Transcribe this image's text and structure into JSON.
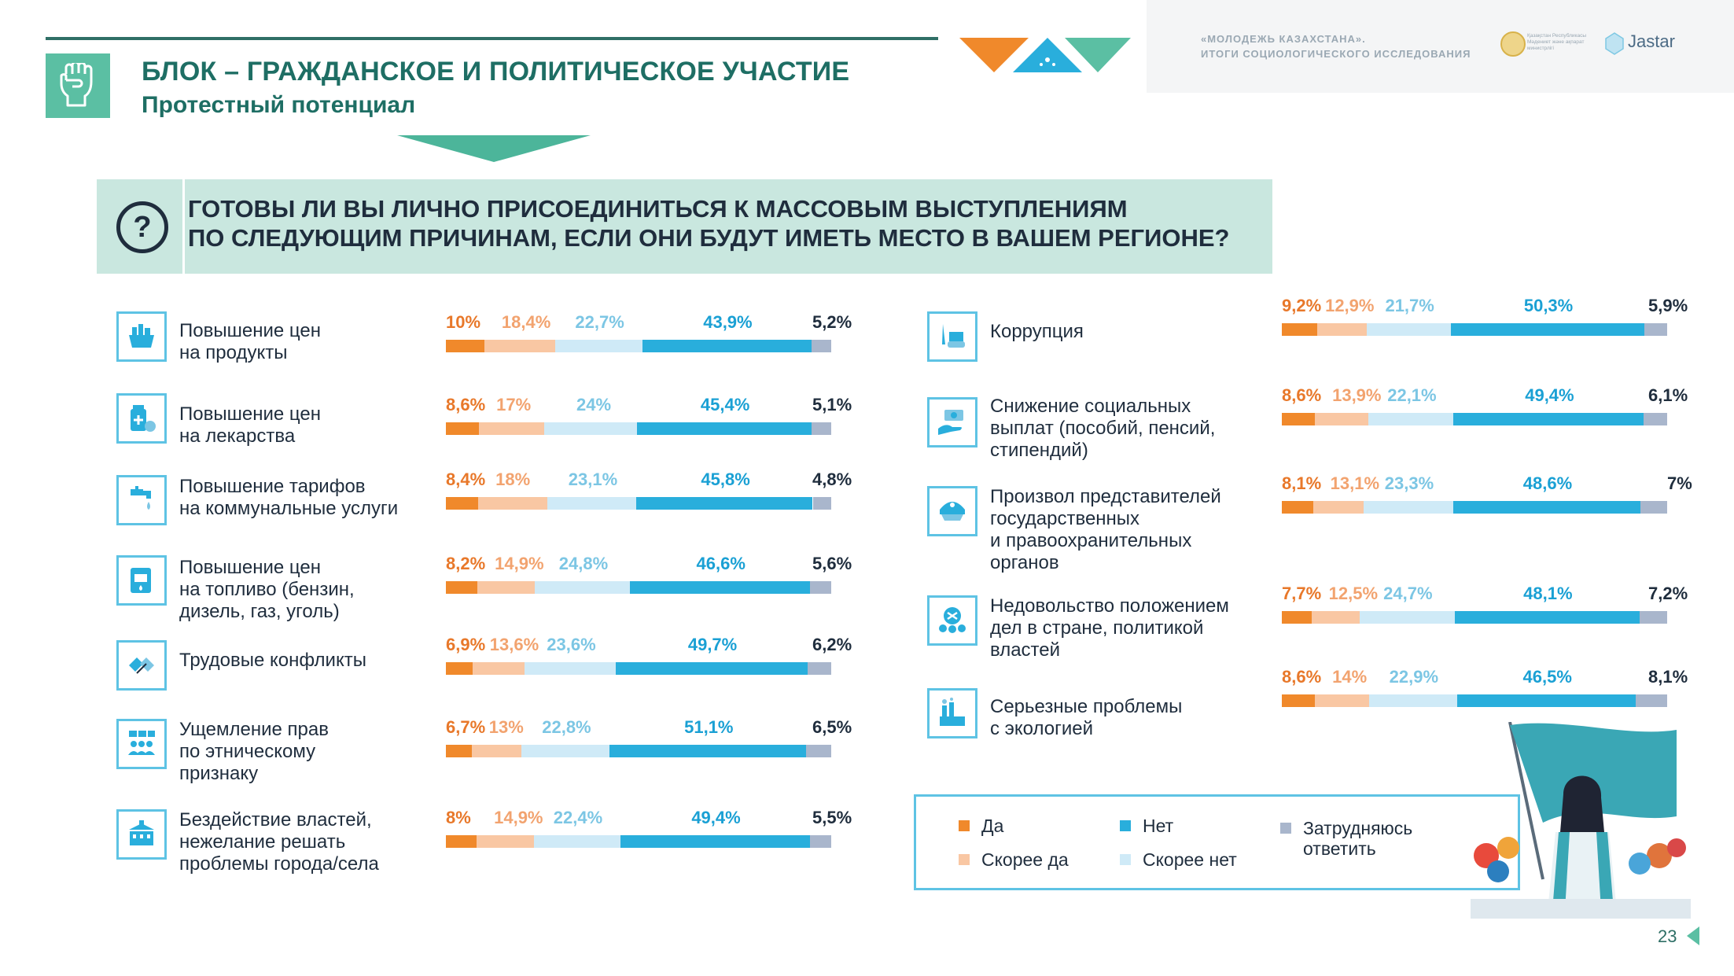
{
  "header": {
    "title": "БЛОК – ГРАЖДАНСКОЕ И ПОЛИТИЧЕСКОЕ УЧАСТИЕ",
    "subtitle": "Протестный потенциал",
    "brand_line1": "«МОЛОДЕЖЬ КАЗАХСТАНА».",
    "brand_line2": "ИТОГИ СОЦИОЛОГИЧЕСКОГО ИССЛЕДОВАНИЯ",
    "emblem_text": "Қазақстан Республикасы Мәдениет және ақпарат министрлігі",
    "logo_text": "Jastar"
  },
  "question": {
    "line1": "ГОТОВЫ ЛИ ВЫ ЛИЧНО ПРИСОЕДИНИТЬСЯ К МАССОВЫМ ВЫСТУПЛЕНИЯМ",
    "line2": "ПО СЛЕДУЮЩИМ ПРИЧИНАМ, ЕСЛИ ОНИ БУДУТ ИМЕТЬ МЕСТО В ВАШЕМ РЕГИОНЕ?",
    "icon": "question-icon"
  },
  "colors": {
    "yes": "#f0892b",
    "rather_yes": "#f9c7a3",
    "rather_no": "#cfeaf7",
    "no": "#29aedc",
    "hard": "#a9b6cc",
    "accent": "#1e6e64"
  },
  "chart_data": {
    "type": "bar",
    "stacked": true,
    "orientation": "horizontal",
    "categories": [
      "Повышение цен на продукты",
      "Повышение цен на лекарства",
      "Повышение тарифов на коммунальные услуги",
      "Повышение цен на топливо (бензин, дизель, газ, уголь)",
      "Трудовые конфликты",
      "Ущемление прав по этническому признаку",
      "Бездействие властей, нежелание решать проблемы города/села",
      "Коррупция",
      "Снижение социальных выплат (пособий, пенсий, стипендий)",
      "Произвол представителей государственных и правоохранительных органов",
      "Недовольство положением дел в стране, политикой властей",
      "Серьезные проблемы с экологией"
    ],
    "series": [
      {
        "name": "Да",
        "values": [
          10,
          8.6,
          8.4,
          8.2,
          6.9,
          6.7,
          8,
          9.2,
          8.6,
          8.1,
          7.7,
          8.6
        ]
      },
      {
        "name": "Скорее да",
        "values": [
          18.4,
          17,
          18,
          14.9,
          13.6,
          13,
          14.9,
          12.9,
          13.9,
          13.1,
          12.5,
          14
        ]
      },
      {
        "name": "Скорее нет",
        "values": [
          22.7,
          24,
          23.1,
          24.8,
          23.6,
          22.8,
          22.4,
          21.7,
          22.1,
          23.3,
          24.7,
          22.9
        ]
      },
      {
        "name": "Нет",
        "values": [
          43.9,
          45.4,
          45.8,
          46.6,
          49.7,
          51.1,
          49.4,
          50.3,
          49.4,
          48.6,
          48.1,
          46.5
        ]
      },
      {
        "name": "Затрудняюсь ответить",
        "values": [
          5.2,
          5.1,
          4.8,
          5.6,
          6.2,
          6.5,
          5.5,
          5.9,
          6.1,
          7,
          7.2,
          8.1
        ]
      }
    ],
    "labels": [
      [
        "10%",
        "18,4%",
        "22,7%",
        "43,9%",
        "5,2%"
      ],
      [
        "8,6%",
        "17%",
        "24%",
        "45,4%",
        "5,1%"
      ],
      [
        "8,4%",
        "18%",
        "23,1%",
        "45,8%",
        "4,8%"
      ],
      [
        "8,2%",
        "14,9%",
        "24,8%",
        "46,6%",
        "5,6%"
      ],
      [
        "6,9%",
        "13,6%",
        "23,6%",
        "49,7%",
        "6,2%"
      ],
      [
        "6,7%",
        "13%",
        "22,8%",
        "51,1%",
        "6,5%"
      ],
      [
        "8%",
        "14,9%",
        "22,4%",
        "49,4%",
        "5,5%"
      ],
      [
        "9,2%",
        "12,9%",
        "21,7%",
        "50,3%",
        "5,9%"
      ],
      [
        "8,6%",
        "13,9%",
        "22,1%",
        "49,4%",
        "6,1%"
      ],
      [
        "8,1%",
        "13,1%",
        "23,3%",
        "48,6%",
        "7%"
      ],
      [
        "7,7%",
        "12,5%",
        "24,7%",
        "48,1%",
        "7,2%"
      ],
      [
        "8,6%",
        "14%",
        "22,9%",
        "46,5%",
        "8,1%"
      ]
    ],
    "label_lines": [
      [
        "Повышение цен",
        "на продукты"
      ],
      [
        "Повышение цен",
        "на лекарства"
      ],
      [
        "Повышение тарифов",
        "на коммунальные услуги"
      ],
      [
        "Повышение цен",
        "на топливо (бензин,",
        "дизель, газ, уголь)"
      ],
      [
        "Трудовые конфликты"
      ],
      [
        "Ущемление прав",
        "по этническому",
        "признаку"
      ],
      [
        "Бездействие властей,",
        "нежелание решать",
        "проблемы города/села"
      ],
      [
        "Коррупция"
      ],
      [
        "Снижение социальных",
        "выплат (пособий, пенсий,",
        "стипендий)"
      ],
      [
        "Произвол представителей",
        "государственных",
        "и правоохранительных",
        "органов"
      ],
      [
        "Недовольство положением",
        "дел в стране, политикой",
        "властей"
      ],
      [
        "Серьезные проблемы",
        "с экологией"
      ]
    ],
    "icons": [
      "basket-icon",
      "medicine-icon",
      "faucet-icon",
      "fuel-icon",
      "conflict-icon",
      "people-icon",
      "government-building-icon",
      "bribe-icon",
      "hand-coin-icon",
      "police-cap-icon",
      "dissatisfaction-icon",
      "factory-icon"
    ],
    "legend": [
      "Да",
      "Скорее да",
      "Нет",
      "Скорее нет",
      "Затрудняюсь ответить"
    ]
  },
  "legend": {
    "yes": "Да",
    "rather_yes": "Скорее да",
    "no": "Нет",
    "rather_no": "Скорее нет",
    "hard_line1": "Затрудняюсь",
    "hard_line2": "ответить"
  },
  "page": {
    "number": "23"
  }
}
